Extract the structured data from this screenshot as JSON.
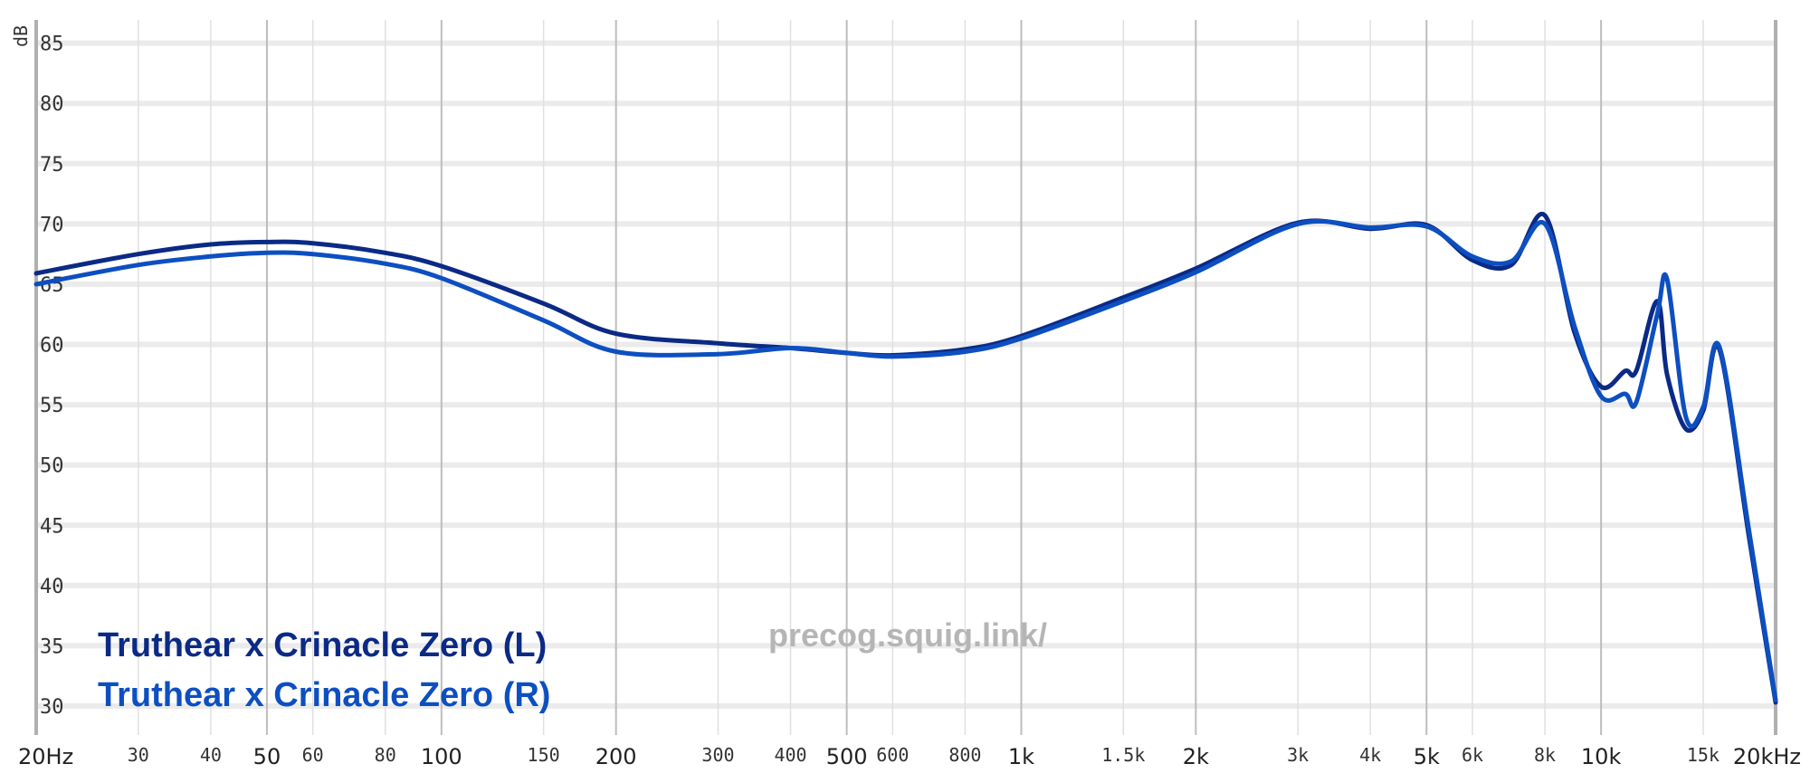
{
  "chart_data": {
    "type": "line",
    "title": "",
    "xlabel": "",
    "ylabel": "dB",
    "xscale": "log",
    "xlim": [
      20,
      20000
    ],
    "ylim": [
      30,
      85
    ],
    "grid": true,
    "legend_position": "bottom-left",
    "watermark": "precog.squig.link/",
    "x_ticks": [
      {
        "value": 20,
        "label": "20Hz",
        "major": true
      },
      {
        "value": 30,
        "label": "30",
        "major": false
      },
      {
        "value": 40,
        "label": "40",
        "major": false
      },
      {
        "value": 50,
        "label": "50",
        "major": true
      },
      {
        "value": 60,
        "label": "60",
        "major": false
      },
      {
        "value": 80,
        "label": "80",
        "major": false
      },
      {
        "value": 100,
        "label": "100",
        "major": true
      },
      {
        "value": 150,
        "label": "150",
        "major": false
      },
      {
        "value": 200,
        "label": "200",
        "major": true
      },
      {
        "value": 300,
        "label": "300",
        "major": false
      },
      {
        "value": 400,
        "label": "400",
        "major": false
      },
      {
        "value": 500,
        "label": "500",
        "major": true
      },
      {
        "value": 600,
        "label": "600",
        "major": false
      },
      {
        "value": 800,
        "label": "800",
        "major": false
      },
      {
        "value": 1000,
        "label": "1k",
        "major": true
      },
      {
        "value": 1500,
        "label": "1.5k",
        "major": false
      },
      {
        "value": 2000,
        "label": "2k",
        "major": true
      },
      {
        "value": 3000,
        "label": "3k",
        "major": false
      },
      {
        "value": 4000,
        "label": "4k",
        "major": false
      },
      {
        "value": 5000,
        "label": "5k",
        "major": true
      },
      {
        "value": 6000,
        "label": "6k",
        "major": false
      },
      {
        "value": 8000,
        "label": "8k",
        "major": false
      },
      {
        "value": 10000,
        "label": "10k",
        "major": true
      },
      {
        "value": 15000,
        "label": "15k",
        "major": false
      },
      {
        "value": 20000,
        "label": "20kHz",
        "major": true
      }
    ],
    "y_ticks": [
      {
        "value": 85,
        "label": "85"
      },
      {
        "value": 80,
        "label": "80"
      },
      {
        "value": 75,
        "label": "75"
      },
      {
        "value": 70,
        "label": "70"
      },
      {
        "value": 65,
        "label": "65"
      },
      {
        "value": 60,
        "label": "60"
      },
      {
        "value": 55,
        "label": "55"
      },
      {
        "value": 50,
        "label": "50"
      },
      {
        "value": 45,
        "label": "45"
      },
      {
        "value": 40,
        "label": "40"
      },
      {
        "value": 35,
        "label": "35"
      },
      {
        "value": 30,
        "label": "30"
      }
    ],
    "series": [
      {
        "name": "Truthear x Crinacle Zero (L)",
        "color": "#0b2a85",
        "points": [
          [
            20,
            65.9
          ],
          [
            30,
            67.5
          ],
          [
            40,
            68.3
          ],
          [
            50,
            68.5
          ],
          [
            60,
            68.4
          ],
          [
            80,
            67.6
          ],
          [
            100,
            66.5
          ],
          [
            150,
            63.4
          ],
          [
            200,
            60.9
          ],
          [
            300,
            60.1
          ],
          [
            400,
            59.7
          ],
          [
            500,
            59.3
          ],
          [
            600,
            59.1
          ],
          [
            800,
            59.6
          ],
          [
            1000,
            60.7
          ],
          [
            1500,
            63.9
          ],
          [
            2000,
            66.3
          ],
          [
            3000,
            70.1
          ],
          [
            4000,
            69.6
          ],
          [
            5000,
            69.9
          ],
          [
            6000,
            67.0
          ],
          [
            7000,
            66.6
          ],
          [
            8000,
            70.7
          ],
          [
            9000,
            61.0
          ],
          [
            10000,
            56.5
          ],
          [
            11000,
            57.8
          ],
          [
            11500,
            57.8
          ],
          [
            12500,
            63.6
          ],
          [
            13000,
            57.5
          ],
          [
            14000,
            53.0
          ],
          [
            15000,
            54.5
          ],
          [
            16000,
            59.6
          ],
          [
            18000,
            44.0
          ],
          [
            20000,
            30.3
          ]
        ]
      },
      {
        "name": "Truthear x Crinacle Zero (R)",
        "color": "#0d4fc1",
        "points": [
          [
            20,
            65.0
          ],
          [
            30,
            66.6
          ],
          [
            40,
            67.3
          ],
          [
            50,
            67.6
          ],
          [
            60,
            67.5
          ],
          [
            80,
            66.7
          ],
          [
            100,
            65.5
          ],
          [
            150,
            62.0
          ],
          [
            200,
            59.4
          ],
          [
            300,
            59.2
          ],
          [
            400,
            59.7
          ],
          [
            500,
            59.3
          ],
          [
            600,
            59.0
          ],
          [
            800,
            59.4
          ],
          [
            1000,
            60.5
          ],
          [
            1500,
            63.6
          ],
          [
            2000,
            66.0
          ],
          [
            3000,
            70.0
          ],
          [
            4000,
            69.7
          ],
          [
            5000,
            69.8
          ],
          [
            6000,
            67.3
          ],
          [
            7000,
            66.9
          ],
          [
            8000,
            70.0
          ],
          [
            9000,
            61.5
          ],
          [
            10000,
            55.7
          ],
          [
            11000,
            55.9
          ],
          [
            11500,
            55.2
          ],
          [
            12500,
            62.5
          ],
          [
            13000,
            65.4
          ],
          [
            14000,
            54.0
          ],
          [
            15000,
            54.8
          ],
          [
            16000,
            59.8
          ],
          [
            18000,
            44.5
          ],
          [
            20000,
            30.5
          ]
        ]
      }
    ]
  }
}
